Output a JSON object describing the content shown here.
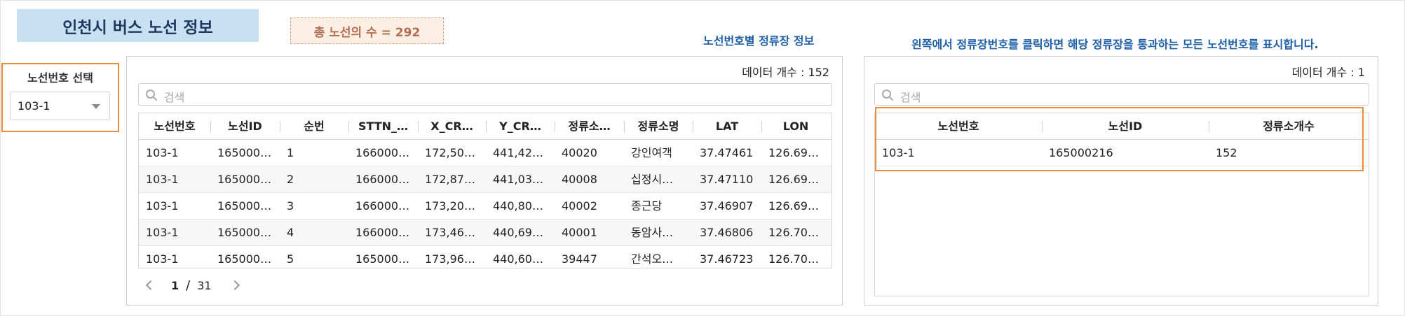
{
  "app": {
    "title": "인천시 버스 노선 정보",
    "route_count_label": "총 노선의 수 = 292"
  },
  "route_select": {
    "label": "노선번호 선택",
    "selected": "103-1"
  },
  "stops_panel": {
    "heading": "노선번호별 정류장 정보",
    "data_count": "데이터 개수 : 152",
    "search_placeholder": "검색",
    "columns": [
      "노선번호",
      "노선ID",
      "순번",
      "STTN_…",
      "X_CR…",
      "Y_CR…",
      "정류소…",
      "정류소명",
      "LAT",
      "LON"
    ],
    "rows": [
      [
        "103-1",
        "165000…",
        "1",
        "166000…",
        "172,50…",
        "441,42…",
        "40020",
        "강인여객",
        "37.47461",
        "126.69…"
      ],
      [
        "103-1",
        "165000…",
        "2",
        "166000…",
        "172,87…",
        "441,03…",
        "40008",
        "십정시…",
        "37.47110",
        "126.69…"
      ],
      [
        "103-1",
        "165000…",
        "3",
        "166000…",
        "173,20…",
        "440,80…",
        "40002",
        "종근당",
        "37.46907",
        "126.69…"
      ],
      [
        "103-1",
        "165000…",
        "4",
        "166000…",
        "173,46…",
        "440,69…",
        "40001",
        "동암사…",
        "37.46806",
        "126.70…"
      ],
      [
        "103-1",
        "165000…",
        "5",
        "165000…",
        "173,96…",
        "440,60…",
        "39447",
        "간석오…",
        "37.46723",
        "126.70…"
      ]
    ],
    "pager": {
      "current": "1",
      "separator": "/",
      "total": "31"
    }
  },
  "routes_panel": {
    "heading": "왼쪽에서 정류장번호를 클릭하면 해당 정류장을 통과하는 모든 노선번호를 표시합니다.",
    "data_count": "데이터 개수 : 1",
    "search_placeholder": "검색",
    "columns": [
      "노선번호",
      "노선ID",
      "정류소개수"
    ],
    "rows": [
      [
        "103-1",
        "165000216",
        "152"
      ]
    ]
  },
  "colors": {
    "accent_orange": "#ee8a3a",
    "heading_blue": "#1f5fa8",
    "title_bg": "#c9dff2",
    "badge_bg": "#fbeee3",
    "badge_text": "#b46d53"
  },
  "icons": [
    "search-icon",
    "chevron-down-icon",
    "chevron-left-icon",
    "chevron-right-icon"
  ]
}
